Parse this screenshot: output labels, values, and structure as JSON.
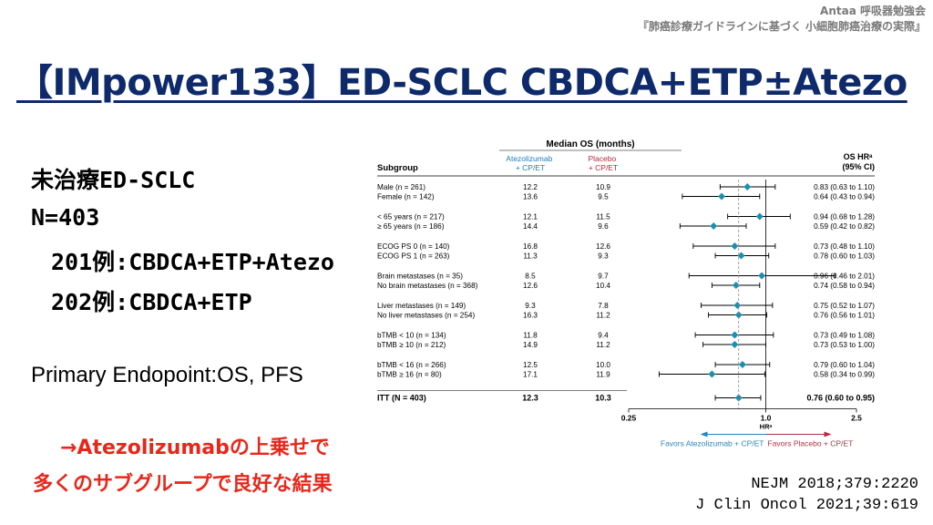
{
  "header": {
    "org": "Antaa 呼吸器勉強会",
    "subtitle": "『肺癌診療ガイドラインに基づく 小細胞肺癌治療の実際』"
  },
  "title": "【IMpower133】ED-SCLC CBDCA+ETP±Atezo",
  "study": {
    "population": "未治療ED-SCLC",
    "n": "N=403",
    "arm1": "201例:CBDCA+ETP+Atezo",
    "arm2": "202例:CBDCA+ETP",
    "endpoint": "Primary Endopoint:OS, PFS"
  },
  "conclusion": {
    "line1": "→Atezolizumabの上乗せで",
    "line2": "多くのサブグループで良好な結果"
  },
  "references": {
    "ref1": "NEJM 2018;379:2220",
    "ref2": "J Clin Oncol 2021;39:619"
  },
  "chart_data": {
    "type": "forest",
    "header_median": "Median OS (months)",
    "header_subgroup": "Subgroup",
    "header_atezo": [
      "Atezolizumab",
      "+ CP/ET"
    ],
    "header_placebo": [
      "Placebo",
      "+ CP/ET"
    ],
    "header_hr": [
      "OS HRᵃ",
      "(95% CI)"
    ],
    "x_scale": "log",
    "xlim": [
      0.25,
      2.5
    ],
    "x_ticks": [
      "0.25",
      "1.0",
      "2.5"
    ],
    "xlabel": "HRᵃ",
    "favors_left": "Favors Atezolizumab + CP/ET",
    "favors_right": "Favors Placebo + CP/ET",
    "reference_line": 0.76,
    "colors": {
      "atezo": "#1a7fb8",
      "placebo": "#b52a3a",
      "marker": "#1b8fb0",
      "arrow_left": "#2a86b6",
      "arrow_right": "#b03040"
    },
    "rows": [
      {
        "label": "Male (n = 261)",
        "atezo": "12.2",
        "placebo": "10.9",
        "hr": 0.83,
        "lo": 0.63,
        "hi": 1.1,
        "ci": "0.83 (0.63 to 1.10)",
        "bold": false,
        "group": 1
      },
      {
        "label": "Female (n = 142)",
        "atezo": "13.6",
        "placebo": "9.5",
        "hr": 0.64,
        "lo": 0.43,
        "hi": 0.94,
        "ci": "0.64 (0.43 to 0.94)",
        "bold": false,
        "group": 1
      },
      {
        "label": "< 65 years (n = 217)",
        "atezo": "12.1",
        "placebo": "11.5",
        "hr": 0.94,
        "lo": 0.68,
        "hi": 1.28,
        "ci": "0.94 (0.68 to 1.28)",
        "bold": false,
        "group": 2
      },
      {
        "label": "≥ 65 years (n = 186)",
        "atezo": "14.4",
        "placebo": "9.6",
        "hr": 0.59,
        "lo": 0.42,
        "hi": 0.82,
        "ci": "0.59 (0.42 to 0.82)",
        "bold": false,
        "group": 2
      },
      {
        "label": "ECOG PS 0 (n = 140)",
        "atezo": "16.8",
        "placebo": "12.6",
        "hr": 0.73,
        "lo": 0.48,
        "hi": 1.1,
        "ci": "0.73 (0.48 to 1.10)",
        "bold": false,
        "group": 3
      },
      {
        "label": "ECOG PS 1 (n = 263)",
        "atezo": "11.3",
        "placebo": "9.3",
        "hr": 0.78,
        "lo": 0.6,
        "hi": 1.03,
        "ci": "0.78 (0.60 to 1.03)",
        "bold": false,
        "group": 3
      },
      {
        "label": "Brain metastases (n = 35)",
        "atezo": "8.5",
        "placebo": "9.7",
        "hr": 0.96,
        "lo": 0.46,
        "hi": 2.01,
        "ci": "0.96 (0.46 to 2.01)",
        "bold": false,
        "group": 4
      },
      {
        "label": "No brain metastases (n = 368)",
        "atezo": "12.6",
        "placebo": "10.4",
        "hr": 0.74,
        "lo": 0.58,
        "hi": 0.94,
        "ci": "0.74 (0.58 to 0.94)",
        "bold": false,
        "group": 4
      },
      {
        "label": "Liver metastases (n = 149)",
        "atezo": "9.3",
        "placebo": "7.8",
        "hr": 0.75,
        "lo": 0.52,
        "hi": 1.07,
        "ci": "0.75 (0.52 to 1.07)",
        "bold": false,
        "group": 5
      },
      {
        "label": "No liver metastases (n = 254)",
        "atezo": "16.3",
        "placebo": "11.2",
        "hr": 0.76,
        "lo": 0.56,
        "hi": 1.01,
        "ci": "0.76 (0.56 to 1.01)",
        "bold": false,
        "group": 5
      },
      {
        "label": "bTMB < 10 (n = 134)",
        "atezo": "11.8",
        "placebo": "9.4",
        "hr": 0.73,
        "lo": 0.49,
        "hi": 1.08,
        "ci": "0.73 (0.49 to 1.08)",
        "bold": false,
        "group": 6
      },
      {
        "label": "bTMB ≥ 10 (n = 212)",
        "atezo": "14.9",
        "placebo": "11.2",
        "hr": 0.73,
        "lo": 0.53,
        "hi": 1.0,
        "ci": "0.73 (0.53 to 1.00)",
        "bold": false,
        "group": 6
      },
      {
        "label": "bTMB < 16 (n = 266)",
        "atezo": "12.5",
        "placebo": "10.0",
        "hr": 0.79,
        "lo": 0.6,
        "hi": 1.04,
        "ci": "0.79 (0.60 to 1.04)",
        "bold": false,
        "group": 7
      },
      {
        "label": "bTMB ≥ 16 (n = 80)",
        "atezo": "17.1",
        "placebo": "11.9",
        "hr": 0.58,
        "lo": 0.34,
        "hi": 0.99,
        "ci": "0.58 (0.34 to 0.99)",
        "bold": false,
        "group": 7
      },
      {
        "label": "ITT (N = 403)",
        "atezo": "12.3",
        "placebo": "10.3",
        "hr": 0.76,
        "lo": 0.6,
        "hi": 0.95,
        "ci": "0.76 (0.60 to 0.95)",
        "bold": true,
        "group": 8
      }
    ]
  }
}
